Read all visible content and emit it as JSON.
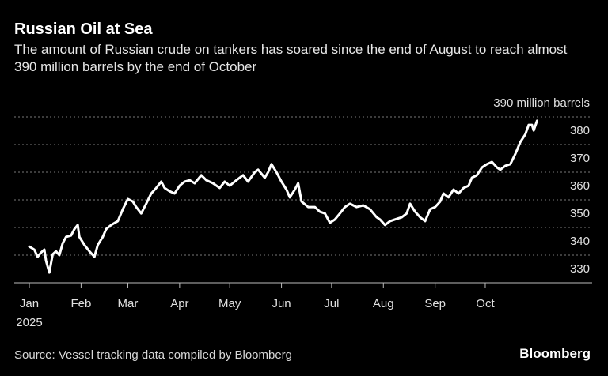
{
  "chart_data": {
    "type": "line",
    "title": "Russian Oil at Sea",
    "subtitle": "The amount of Russian crude on tankers has soared since the end of August to reach almost 390 million barrels by the end of October",
    "x_annotation": "2025",
    "source": "Source: Vessel tracking data compiled by Bloomberg",
    "brand": "Bloomberg",
    "xlim": [
      -8,
      338
    ],
    "xticks": [
      {
        "value": 1,
        "label": "Jan"
      },
      {
        "value": 32,
        "label": "Feb"
      },
      {
        "value": 60,
        "label": "Mar"
      },
      {
        "value": 91,
        "label": "Apr"
      },
      {
        "value": 121,
        "label": "May"
      },
      {
        "value": 152,
        "label": "Jun"
      },
      {
        "value": 182,
        "label": "Jul"
      },
      {
        "value": 213,
        "label": "Aug"
      },
      {
        "value": 244,
        "label": "Sep"
      },
      {
        "value": 274,
        "label": "Oct"
      }
    ],
    "ylim": [
      330,
      390
    ],
    "yticks": [
      330,
      340,
      350,
      360,
      370,
      380,
      {
        "value": 390,
        "label": "390 million barrels"
      }
    ],
    "grid": true,
    "series": [
      {
        "color": "#ffffff",
        "x": [
          1,
          4,
          6,
          8,
          10,
          11,
          13,
          15,
          17,
          19,
          21,
          23,
          26,
          28,
          30,
          31,
          34,
          37,
          40,
          42,
          45,
          47,
          50,
          54,
          57,
          60,
          63,
          65,
          68,
          71,
          74,
          77,
          80,
          82,
          85,
          88,
          91,
          94,
          97,
          100,
          104,
          107,
          111,
          115,
          118,
          121,
          125,
          129,
          132,
          136,
          138,
          142,
          144,
          146,
          149,
          152,
          155,
          157,
          160,
          162,
          164,
          168,
          172,
          175,
          178,
          181,
          184,
          187,
          190,
          193,
          197,
          201,
          205,
          209,
          211,
          214,
          217,
          220,
          224,
          227,
          229,
          232,
          235,
          238,
          241,
          244,
          247,
          249,
          252,
          255,
          258,
          261,
          264,
          266,
          269,
          272,
          275,
          278,
          281,
          283,
          286,
          289,
          292,
          295,
          298,
          300,
          302,
          303,
          305
        ],
        "values": [
          343.1,
          342,
          339.4,
          340.9,
          342,
          338,
          333.7,
          340.3,
          341.4,
          340,
          344.3,
          346.6,
          347.1,
          349.4,
          350.9,
          346.6,
          343.7,
          341.4,
          339.4,
          343.7,
          346.6,
          349.4,
          350.9,
          352.3,
          356.6,
          360.3,
          359.4,
          357.4,
          355.1,
          358.6,
          362.3,
          364.3,
          366.6,
          364.3,
          363.1,
          362.3,
          365.1,
          366.6,
          367.1,
          366,
          368.9,
          367.1,
          366,
          364.3,
          366.6,
          365.1,
          367.1,
          368.9,
          366.6,
          370,
          370.9,
          368,
          370,
          372.9,
          370,
          366.6,
          363.7,
          360.9,
          363.7,
          366,
          359.4,
          357.4,
          357.4,
          355.7,
          355.1,
          351.7,
          352.9,
          355.1,
          357.4,
          358.6,
          357.4,
          358,
          356.6,
          353.7,
          352.9,
          350.9,
          352.3,
          352.9,
          353.7,
          355.1,
          358.6,
          355.7,
          353.7,
          352.3,
          356.6,
          357.4,
          359.4,
          362.3,
          360.9,
          363.7,
          362.3,
          364.3,
          365.1,
          368,
          368.9,
          371.7,
          372.9,
          373.7,
          371.7,
          370.9,
          372.3,
          372.9,
          376.6,
          380.9,
          383.7,
          387.1,
          387.1,
          385.1,
          388.6
        ]
      }
    ]
  }
}
